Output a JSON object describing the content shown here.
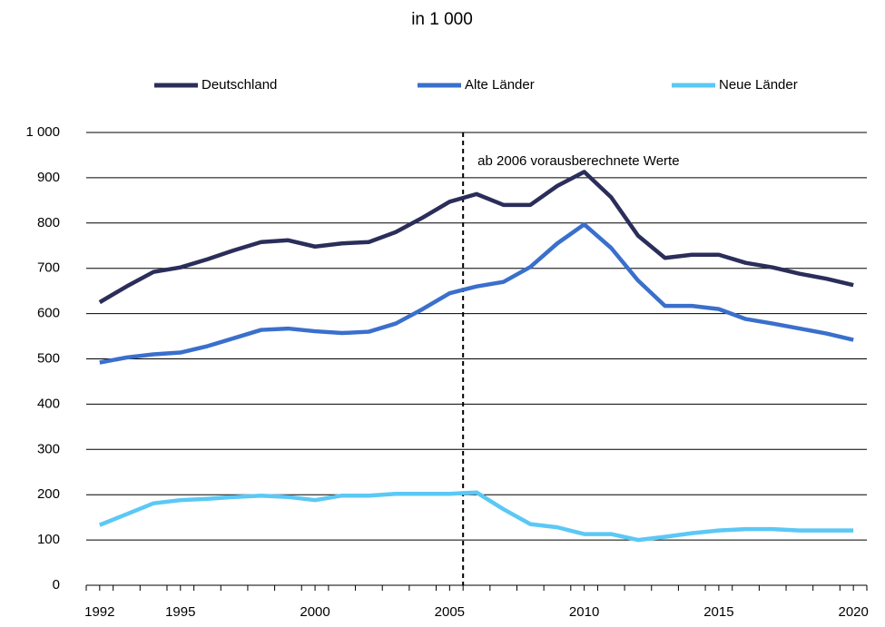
{
  "chart_data": {
    "type": "line",
    "title": "in 1 000",
    "x": [
      1992,
      1993,
      1994,
      1995,
      1996,
      1997,
      1998,
      1999,
      2000,
      2001,
      2002,
      2003,
      2004,
      2005,
      2006,
      2007,
      2008,
      2009,
      2010,
      2011,
      2012,
      2013,
      2014,
      2015,
      2016,
      2017,
      2018,
      2019,
      2020
    ],
    "series": [
      {
        "name": "Deutschland",
        "color": "#2b2d5a",
        "values": [
          625,
          660,
          692,
          702,
          720,
          740,
          758,
          762,
          748,
          755,
          758,
          780,
          812,
          847,
          864,
          840,
          840,
          882,
          913,
          857,
          772,
          723,
          730,
          730,
          712,
          702,
          688,
          677,
          663
        ]
      },
      {
        "name": "Alte Länder",
        "color": "#3a6fcc",
        "values": [
          492,
          503,
          510,
          514,
          528,
          546,
          564,
          567,
          561,
          557,
          560,
          578,
          610,
          645,
          660,
          670,
          703,
          755,
          797,
          745,
          673,
          617,
          617,
          610,
          588,
          578,
          567,
          556,
          542
        ]
      },
      {
        "name": "Neue Länder",
        "color": "#5bc8f5",
        "values": [
          133,
          157,
          181,
          188,
          191,
          195,
          198,
          195,
          188,
          198,
          198,
          202,
          202,
          202,
          205,
          168,
          135,
          128,
          113,
          113,
          100,
          107,
          115,
          121,
          124,
          124,
          121,
          121,
          121
        ]
      }
    ],
    "xlim": [
      1991.5,
      2020.5
    ],
    "xticks": [
      1992,
      1995,
      2000,
      2005,
      2010,
      2015,
      2020
    ],
    "ylim": [
      0,
      1000
    ],
    "yticks": [
      0,
      100,
      200,
      300,
      400,
      500,
      600,
      700,
      800,
      900,
      {
        "value": 1000,
        "label": "1 000"
      }
    ],
    "grid": true,
    "legend": "top",
    "annotations": [
      {
        "text": "ab 2006 vorausberechnete Werte",
        "x": 2005.5
      }
    ]
  }
}
